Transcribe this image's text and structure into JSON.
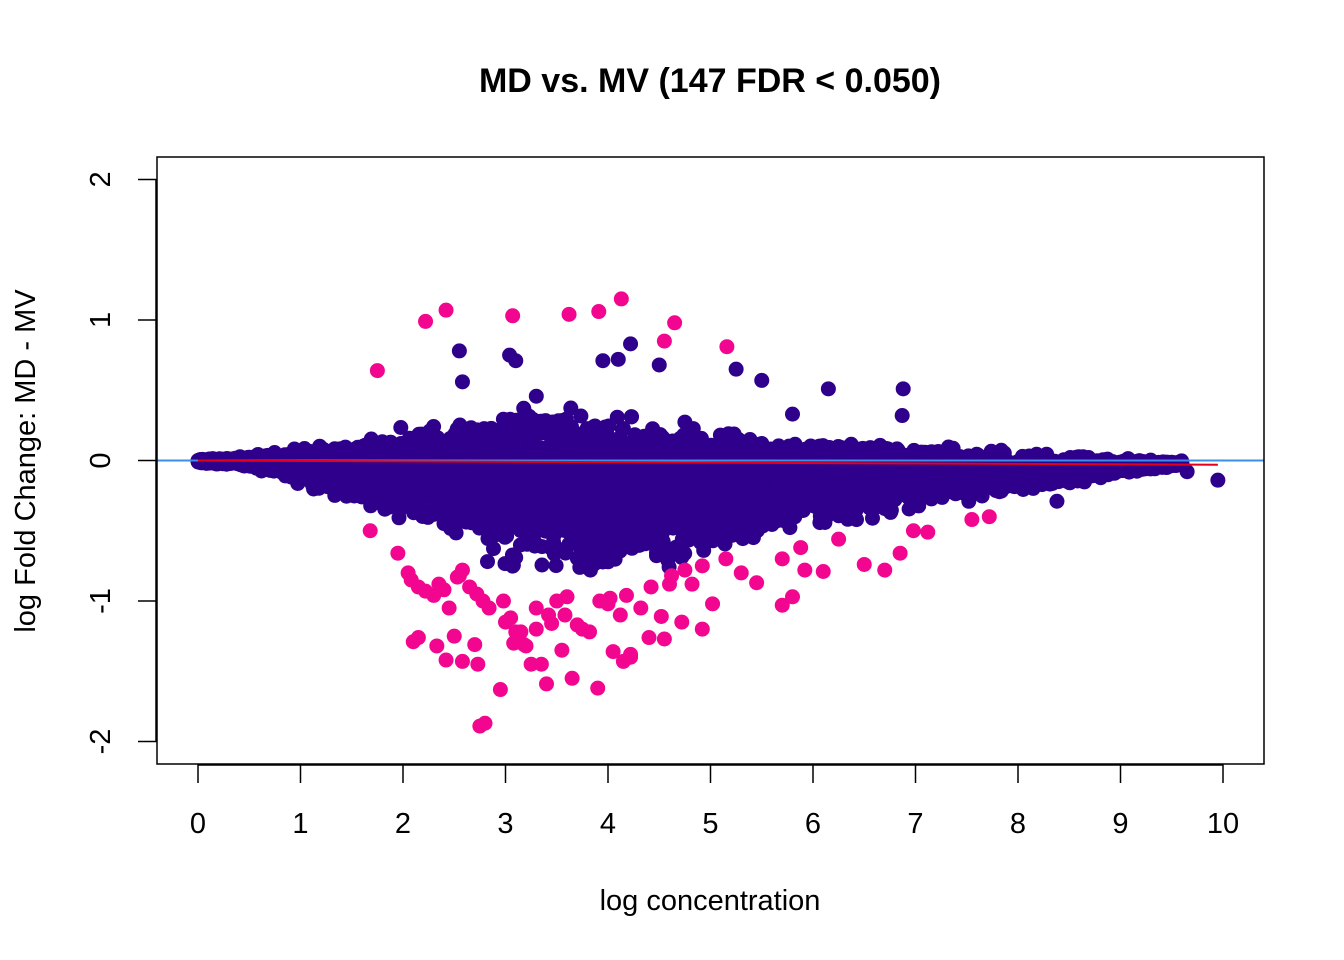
{
  "chart_data": {
    "type": "scatter",
    "title": "MD vs. MV (147 FDR < 0.050)",
    "xlabel": "log concentration",
    "ylabel": "log Fold Change: MD - MV",
    "xlim": [
      -0.4,
      10.4
    ],
    "ylim": [
      -2.16,
      2.16
    ],
    "xticks": [
      0,
      1,
      2,
      3,
      4,
      5,
      6,
      7,
      8,
      9,
      10
    ],
    "yticks": [
      -2,
      -1,
      0,
      1,
      2
    ],
    "grid": false,
    "legend": "none",
    "colors": {
      "non_significant": "#2E008B",
      "significant": "#F2068F",
      "zero_line": "#3B8EEA",
      "fit_line": "#E3001B"
    },
    "significant_points": {
      "x": [
        2.22,
        2.42,
        3.07,
        3.62,
        3.91,
        4.13,
        4.65,
        4.55,
        5.16,
        1.75,
        1.68,
        1.95,
        2.05,
        2.08,
        2.15,
        2.22,
        2.3,
        2.35,
        2.4,
        2.45,
        2.53,
        2.58,
        2.1,
        2.15,
        2.33,
        2.42,
        2.5,
        2.58,
        2.73,
        2.78,
        2.84,
        2.98,
        3.1,
        3.2,
        3.3,
        3.42,
        3.5,
        3.6,
        3.7,
        3.82,
        3.92,
        4.02,
        4.12,
        4.22,
        4.32,
        4.42,
        4.52,
        4.62,
        4.72,
        4.82,
        4.92,
        5.02,
        5.15,
        5.3,
        5.45,
        5.7,
        5.8,
        5.92,
        6.1,
        6.25,
        6.5,
        6.7,
        6.85,
        6.98,
        7.12,
        7.55,
        7.72,
        2.75,
        2.8,
        2.95,
        3.05,
        3.12,
        3.18,
        3.25,
        3.3,
        3.4,
        3.55,
        3.65,
        3.75,
        3.9,
        4.05,
        4.15,
        4.22,
        4.4,
        4.55,
        4.75,
        4.92,
        2.72,
        2.7,
        3.0,
        3.08,
        3.45,
        3.58,
        4.0,
        4.18,
        4.6,
        5.88,
        5.7,
        3.15,
        3.35,
        2.55,
        2.65
      ],
      "y": [
        0.99,
        1.07,
        1.03,
        1.04,
        1.06,
        1.15,
        0.98,
        0.85,
        0.81,
        0.64,
        -0.5,
        -0.66,
        -0.8,
        -0.85,
        -0.9,
        -0.93,
        -0.96,
        -0.88,
        -0.92,
        -1.05,
        -0.83,
        -0.78,
        -1.29,
        -1.26,
        -1.32,
        -1.42,
        -1.25,
        -1.43,
        -1.45,
        -1.0,
        -1.05,
        -1.0,
        -1.22,
        -1.32,
        -1.05,
        -1.1,
        -1.0,
        -0.97,
        -1.17,
        -1.22,
        -1.0,
        -0.98,
        -1.1,
        -1.4,
        -1.05,
        -0.9,
        -1.11,
        -0.82,
        -1.15,
        -0.88,
        -1.2,
        -1.02,
        -0.7,
        -0.8,
        -0.87,
        -1.03,
        -0.97,
        -0.78,
        -0.79,
        -0.56,
        -0.74,
        -0.78,
        -0.66,
        -0.5,
        -0.51,
        -0.42,
        -0.4,
        -1.89,
        -1.87,
        -1.63,
        -1.12,
        -1.26,
        -1.31,
        -1.45,
        -1.2,
        -1.59,
        -1.35,
        -1.55,
        -1.2,
        -1.62,
        -1.36,
        -1.43,
        -1.38,
        -1.26,
        -1.27,
        -0.78,
        -0.75,
        -0.95,
        -1.31,
        -1.15,
        -1.3,
        -1.16,
        -1.1,
        -1.02,
        -0.96,
        -0.88,
        -0.62,
        -0.7,
        -1.22,
        -1.45,
        -0.82,
        -0.9
      ]
    },
    "outlier_points": {
      "x": [
        9.95,
        9.65,
        9.45,
        8.38,
        6.88,
        6.87,
        6.15,
        5.8,
        4.22,
        3.04,
        2.55,
        2.58,
        3.1,
        3.95,
        4.1,
        4.5,
        5.25,
        5.5
      ],
      "y": [
        -0.14,
        -0.08,
        -0.05,
        -0.29,
        0.51,
        0.32,
        0.51,
        0.33,
        0.83,
        0.75,
        0.78,
        0.56,
        0.71,
        0.71,
        0.72,
        0.68,
        0.65,
        0.57
      ]
    },
    "reference_lines": {
      "zero": 0,
      "fit_start": [
        0,
        0.0
      ],
      "fit_end": [
        9.95,
        -0.03
      ]
    }
  }
}
